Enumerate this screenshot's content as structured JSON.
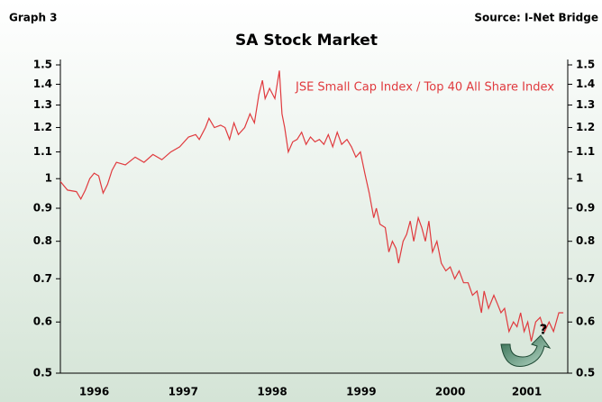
{
  "graph_label": "Graph 3",
  "source": "Source: I-Net Bridge",
  "chart_data": {
    "type": "line",
    "title": "SA Stock Market",
    "log_scale": true,
    "xlim": [
      1996.12,
      2001.82
    ],
    "xticks": [
      {
        "value": 1996.5,
        "label": "1996"
      },
      {
        "value": 1997.5,
        "label": "1997"
      },
      {
        "value": 1998.5,
        "label": "1998"
      },
      {
        "value": 1999.5,
        "label": "1999"
      },
      {
        "value": 2000.5,
        "label": "2000"
      },
      {
        "value": 2001.36,
        "label": "2001"
      }
    ],
    "ylim": [
      0.5,
      1.5
    ],
    "yticks": [
      0.5,
      0.6,
      0.7,
      0.8,
      0.9,
      1,
      1.1,
      1.2,
      1.3,
      1.4,
      1.5
    ],
    "annotation": "?",
    "series": [
      {
        "name": "JSE Small Cap Index / Top 40 All Share Index",
        "color": "#e03a3e",
        "x": [
          1996.12,
          1996.2,
          1996.3,
          1996.35,
          1996.4,
          1996.45,
          1996.5,
          1996.55,
          1996.6,
          1996.65,
          1996.7,
          1996.75,
          1996.85,
          1996.96,
          1997.06,
          1997.16,
          1997.26,
          1997.36,
          1997.46,
          1997.56,
          1997.64,
          1997.68,
          1997.75,
          1997.79,
          1997.85,
          1997.92,
          1997.97,
          1998.02,
          1998.07,
          1998.12,
          1998.19,
          1998.25,
          1998.3,
          1998.35,
          1998.39,
          1998.42,
          1998.47,
          1998.53,
          1998.58,
          1998.61,
          1998.64,
          1998.68,
          1998.73,
          1998.78,
          1998.83,
          1998.88,
          1998.93,
          1998.98,
          1999.03,
          1999.08,
          1999.13,
          1999.18,
          1999.23,
          1999.28,
          1999.34,
          1999.39,
          1999.44,
          1999.49,
          1999.54,
          1999.59,
          1999.64,
          1999.67,
          1999.71,
          1999.77,
          1999.81,
          1999.85,
          1999.89,
          1999.92,
          1999.97,
          2000.01,
          2000.05,
          2000.09,
          2000.14,
          2000.18,
          2000.22,
          2000.26,
          2000.3,
          2000.35,
          2000.4,
          2000.45,
          2000.5,
          2000.55,
          2000.6,
          2000.65,
          2000.7,
          2000.75,
          2000.8,
          2000.85,
          2000.88,
          2000.93,
          2000.99,
          2001.03,
          2001.07,
          2001.11,
          2001.16,
          2001.21,
          2001.25,
          2001.29,
          2001.33,
          2001.37,
          2001.41,
          2001.46,
          2001.51,
          2001.56,
          2001.61,
          2001.66,
          2001.72,
          2001.77
        ],
        "values": [
          0.99,
          0.96,
          0.955,
          0.93,
          0.96,
          1.0,
          1.02,
          1.01,
          0.95,
          0.98,
          1.03,
          1.06,
          1.05,
          1.08,
          1.06,
          1.09,
          1.07,
          1.1,
          1.12,
          1.16,
          1.17,
          1.15,
          1.2,
          1.24,
          1.2,
          1.21,
          1.2,
          1.15,
          1.22,
          1.17,
          1.2,
          1.26,
          1.22,
          1.35,
          1.42,
          1.33,
          1.38,
          1.33,
          1.47,
          1.26,
          1.2,
          1.1,
          1.14,
          1.15,
          1.18,
          1.13,
          1.16,
          1.14,
          1.15,
          1.13,
          1.17,
          1.12,
          1.18,
          1.13,
          1.15,
          1.12,
          1.08,
          1.1,
          1.02,
          0.95,
          0.87,
          0.9,
          0.85,
          0.84,
          0.77,
          0.8,
          0.78,
          0.74,
          0.8,
          0.82,
          0.86,
          0.8,
          0.87,
          0.84,
          0.8,
          0.86,
          0.77,
          0.8,
          0.74,
          0.72,
          0.73,
          0.7,
          0.72,
          0.69,
          0.69,
          0.66,
          0.67,
          0.62,
          0.67,
          0.63,
          0.66,
          0.64,
          0.62,
          0.63,
          0.58,
          0.6,
          0.59,
          0.62,
          0.58,
          0.6,
          0.56,
          0.6,
          0.61,
          0.58,
          0.6,
          0.58,
          0.62,
          0.62
        ]
      }
    ]
  }
}
